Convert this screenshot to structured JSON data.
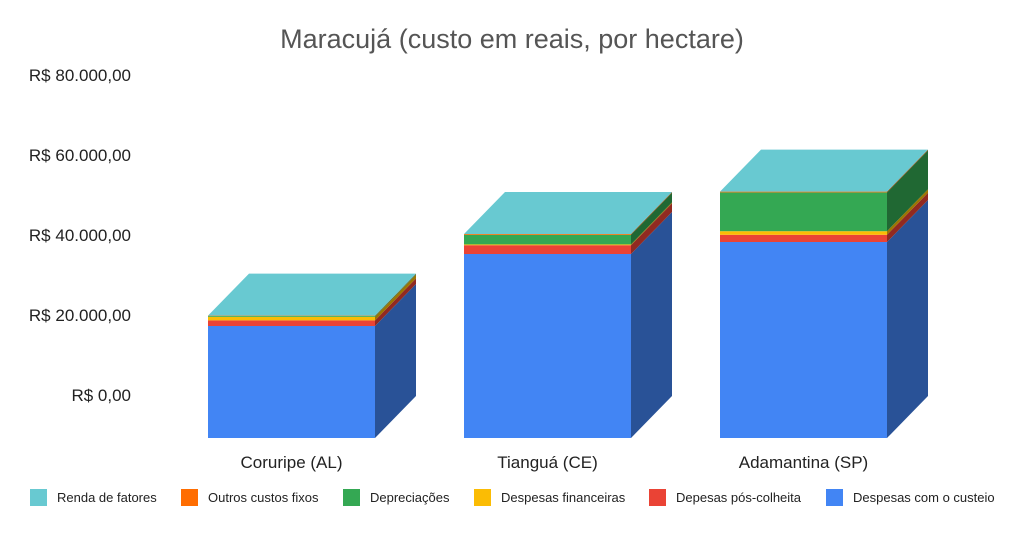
{
  "chart_data": {
    "type": "bar",
    "stacked": true,
    "three_d": true,
    "title": "Maracujá (custo em reais, por hectare)",
    "categories": [
      "Coruripe (AL)",
      "Tianguá (CE)",
      "Adamantina (SP)"
    ],
    "ylim": [
      0,
      80000
    ],
    "yticks": [
      "R$ 0,00",
      "R$ 20.000,00",
      "R$ 40.000,00",
      "R$ 60.000,00",
      "R$ 80.000,00"
    ],
    "ytick_values": [
      0,
      20000,
      40000,
      60000,
      80000
    ],
    "grid": false,
    "legend_position": "bottom",
    "series": [
      {
        "name": "Despesas com o custeio",
        "color": "#4285f4",
        "values": [
          28000,
          46000,
          49000
        ]
      },
      {
        "name": "Depesas pós-colheita",
        "color": "#ea4335",
        "values": [
          1400,
          2200,
          1800
        ]
      },
      {
        "name": "Despesas financeiras",
        "color": "#fbbc04",
        "values": [
          900,
          200,
          900
        ]
      },
      {
        "name": "Depreciações",
        "color": "#34a853",
        "values": [
          200,
          2400,
          9700
        ]
      },
      {
        "name": "Outros custos fixos",
        "color": "#ff6d01",
        "values": [
          100,
          200,
          200
        ]
      },
      {
        "name": "Renda de fatores",
        "color": "#68c9d1",
        "values": [
          0,
          0,
          0
        ]
      }
    ],
    "legend_order": [
      "Renda de fatores",
      "Outros custos fixos",
      "Depreciações",
      "Despesas financeiras",
      "Depesas pós-colheita",
      "Despesas com o custeio"
    ]
  }
}
